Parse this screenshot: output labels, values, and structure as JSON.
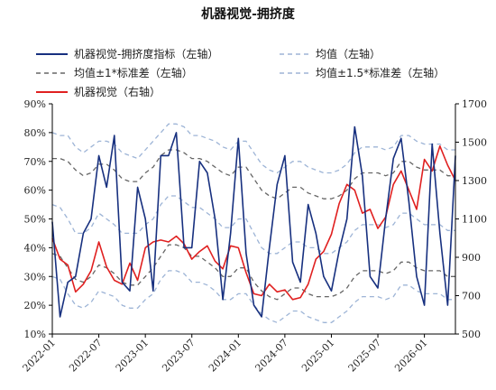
{
  "title": "机器视觉-拥挤度",
  "colors": {
    "main_line": "#17307f",
    "red_line": "#e02020",
    "mean_line": "#9db4d6",
    "std1_line": "#666666",
    "std15_line": "#9db4d6",
    "axis": "#000000"
  },
  "legend": {
    "item1": "机器视觉-拥挤度指标（左轴）",
    "item2": "均值（左轴）",
    "item3": "均值±1*标准差（左轴）",
    "item4": "均值±1.5*标准差（左轴）",
    "item5": "机器视觉（右轴）"
  },
  "chart_data": {
    "type": "line",
    "title": "机器视觉-拥挤度",
    "left_axis": {
      "min": 10,
      "max": 90,
      "ticks": [
        "10%",
        "20%",
        "30%",
        "40%",
        "50%",
        "60%",
        "70%",
        "80%",
        "90%"
      ]
    },
    "right_axis": {
      "min": 500,
      "max": 1700,
      "ticks": [
        "500",
        "700",
        "900",
        "1100",
        "1300",
        "1500",
        "1700"
      ]
    },
    "x_range": [
      "2022-01",
      "2026-05"
    ],
    "x_ticks": [
      "2022-01",
      "2022-07",
      "2023-01",
      "2023-07",
      "2024-01",
      "2024-07",
      "2025-01",
      "2025-07",
      "2026-01"
    ],
    "series": [
      {
        "name": "机器视觉-拥挤度指标（左轴）",
        "axis": "left",
        "x": [
          "2022-01",
          "2022-02",
          "2022-03",
          "2022-04",
          "2022-05",
          "2022-06",
          "2022-07",
          "2022-08",
          "2022-09",
          "2022-10",
          "2022-11",
          "2022-12",
          "2023-01",
          "2023-02",
          "2023-03",
          "2023-04",
          "2023-05",
          "2023-06",
          "2023-07",
          "2023-08",
          "2023-09",
          "2023-10",
          "2023-11",
          "2023-12",
          "2024-01",
          "2024-02",
          "2024-03",
          "2024-04",
          "2024-05",
          "2024-06",
          "2024-07",
          "2024-08",
          "2024-09",
          "2024-10",
          "2024-11",
          "2024-12",
          "2025-01",
          "2025-02",
          "2025-03",
          "2025-04",
          "2025-05",
          "2025-06",
          "2025-07",
          "2025-08",
          "2025-09",
          "2025-10",
          "2025-11",
          "2025-12",
          "2026-01",
          "2026-02",
          "2026-03",
          "2026-04",
          "2026-05"
        ],
        "values": [
          49,
          16,
          28,
          30,
          45,
          50,
          72,
          61,
          79,
          28,
          25,
          61,
          50,
          25,
          72,
          72,
          80,
          40,
          40,
          70,
          66,
          50,
          22,
          45,
          78,
          38,
          20,
          16,
          40,
          62,
          72,
          35,
          28,
          55,
          45,
          30,
          25,
          39,
          50,
          82,
          65,
          30,
          26,
          50,
          71,
          78,
          56,
          30,
          20,
          76,
          45,
          20,
          72
        ]
      },
      {
        "name": "机器视觉（右轴）",
        "axis": "right",
        "x": [
          "2022-01",
          "2022-02",
          "2022-03",
          "2022-04",
          "2022-05",
          "2022-06",
          "2022-07",
          "2022-08",
          "2022-09",
          "2022-10",
          "2022-11",
          "2022-12",
          "2023-01",
          "2023-02",
          "2023-03",
          "2023-04",
          "2023-05",
          "2023-06",
          "2023-07",
          "2023-08",
          "2023-09",
          "2023-10",
          "2023-11",
          "2023-12",
          "2024-01",
          "2024-02",
          "2024-03",
          "2024-04",
          "2024-05",
          "2024-06",
          "2024-07",
          "2024-08",
          "2024-09",
          "2024-10",
          "2024-11",
          "2024-12",
          "2025-01",
          "2025-02",
          "2025-03",
          "2025-04",
          "2025-05",
          "2025-06",
          "2025-07",
          "2025-08",
          "2025-09",
          "2025-10",
          "2025-11",
          "2025-12",
          "2026-01",
          "2026-02",
          "2026-03",
          "2026-04",
          "2026-05"
        ],
        "values": [
          1000,
          890,
          860,
          720,
          760,
          830,
          980,
          850,
          780,
          760,
          870,
          780,
          950,
          980,
          990,
          980,
          1010,
          970,
          890,
          930,
          960,
          880,
          840,
          960,
          950,
          820,
          710,
          700,
          760,
          720,
          730,
          680,
          690,
          760,
          890,
          930,
          1020,
          1180,
          1280,
          1250,
          1130,
          1150,
          1050,
          1110,
          1280,
          1350,
          1250,
          1150,
          1410,
          1350,
          1480,
          1380,
          1300
        ]
      }
    ],
    "mean": {
      "axis": "left",
      "values": [
        55,
        54,
        50,
        45,
        45,
        47,
        52,
        50,
        48,
        45,
        45,
        45,
        48,
        50,
        55,
        58,
        58,
        56,
        54,
        54,
        52,
        50,
        47,
        47,
        50,
        50,
        45,
        40,
        38,
        38,
        40,
        42,
        42,
        40,
        40,
        38,
        38,
        40,
        42,
        46,
        48,
        48,
        48,
        47,
        48,
        52,
        52,
        50,
        48,
        48,
        48,
        46,
        46
      ]
    },
    "std1_upper": {
      "axis": "left",
      "values": [
        71,
        71,
        70,
        67,
        65,
        66,
        69,
        69,
        67,
        64,
        63,
        63,
        66,
        68,
        72,
        74,
        74,
        73,
        71,
        71,
        70,
        68,
        66,
        65,
        68,
        68,
        64,
        60,
        58,
        57,
        59,
        61,
        61,
        59,
        58,
        57,
        57,
        58,
        60,
        64,
        66,
        66,
        66,
        65,
        66,
        70,
        70,
        68,
        67,
        67,
        67,
        65,
        65
      ]
    },
    "std1_lower": {
      "axis": "left",
      "values": [
        38,
        37,
        33,
        29,
        28,
        30,
        34,
        33,
        31,
        28,
        27,
        27,
        30,
        33,
        37,
        41,
        41,
        40,
        37,
        37,
        35,
        33,
        30,
        30,
        33,
        33,
        28,
        25,
        23,
        22,
        24,
        26,
        26,
        24,
        23,
        23,
        23,
        24,
        26,
        30,
        32,
        32,
        32,
        31,
        32,
        35,
        35,
        33,
        32,
        32,
        32,
        30,
        30
      ]
    },
    "std15_upper": {
      "axis": "left",
      "values": [
        80,
        79,
        79,
        75,
        73,
        75,
        77,
        77,
        76,
        73,
        72,
        71,
        74,
        77,
        80,
        83,
        83,
        82,
        79,
        79,
        78,
        77,
        75,
        74,
        77,
        77,
        73,
        69,
        67,
        66,
        68,
        70,
        70,
        68,
        67,
        66,
        66,
        67,
        69,
        73,
        75,
        75,
        75,
        74,
        75,
        79,
        79,
        77,
        76,
        76,
        76,
        74,
        74
      ]
    },
    "std15_lower": {
      "axis": "left",
      "values": [
        30,
        29,
        24,
        20,
        19,
        21,
        25,
        24,
        23,
        20,
        19,
        19,
        22,
        24,
        29,
        32,
        32,
        31,
        28,
        28,
        27,
        25,
        22,
        22,
        24,
        24,
        20,
        17,
        15,
        14,
        16,
        18,
        18,
        16,
        15,
        14,
        14,
        16,
        18,
        21,
        23,
        23,
        23,
        22,
        23,
        27,
        27,
        25,
        24,
        24,
        24,
        22,
        22
      ]
    }
  }
}
